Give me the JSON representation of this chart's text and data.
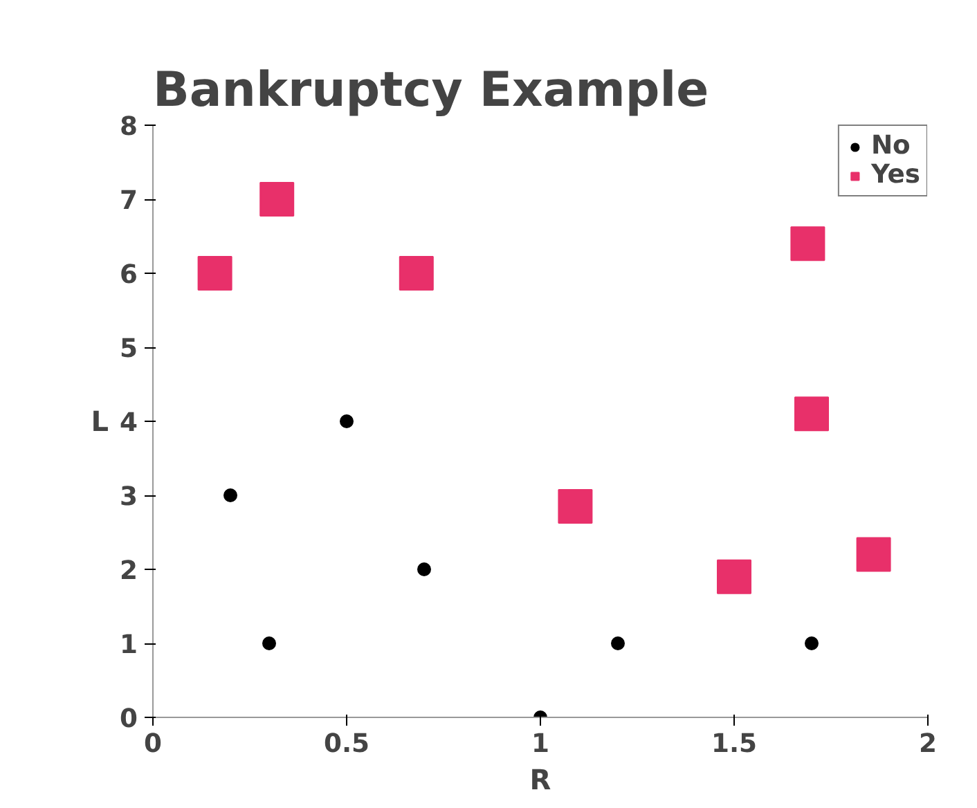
{
  "chart_data": {
    "type": "scatter",
    "title": "Bankruptcy Example",
    "xlabel": "R",
    "ylabel": "L",
    "series": [
      {
        "name": "No",
        "color": "#000000",
        "marker": "circle",
        "x": [
          0.2,
          0.3,
          0.5,
          0.7,
          1,
          1.2,
          1.7
        ],
        "values": [
          3,
          1,
          4,
          2,
          0,
          1,
          1
        ]
      },
      {
        "name": "Yes",
        "color": "#e8306a",
        "marker": "square",
        "x": [
          0.16,
          0.32,
          0.68,
          1.09,
          1.5,
          1.69,
          1.7,
          1.86
        ],
        "values": [
          6,
          7,
          6,
          2.85,
          1.9,
          6.4,
          4.1,
          2.2
        ]
      }
    ],
    "xlim": [
      0,
      2
    ],
    "ylim": [
      0,
      8
    ],
    "xticks": [
      0,
      0.5,
      1,
      1.5,
      2
    ],
    "yticks": [
      0,
      1,
      2,
      3,
      4,
      5,
      6,
      7,
      8
    ],
    "grid": false,
    "legend": "top right"
  }
}
